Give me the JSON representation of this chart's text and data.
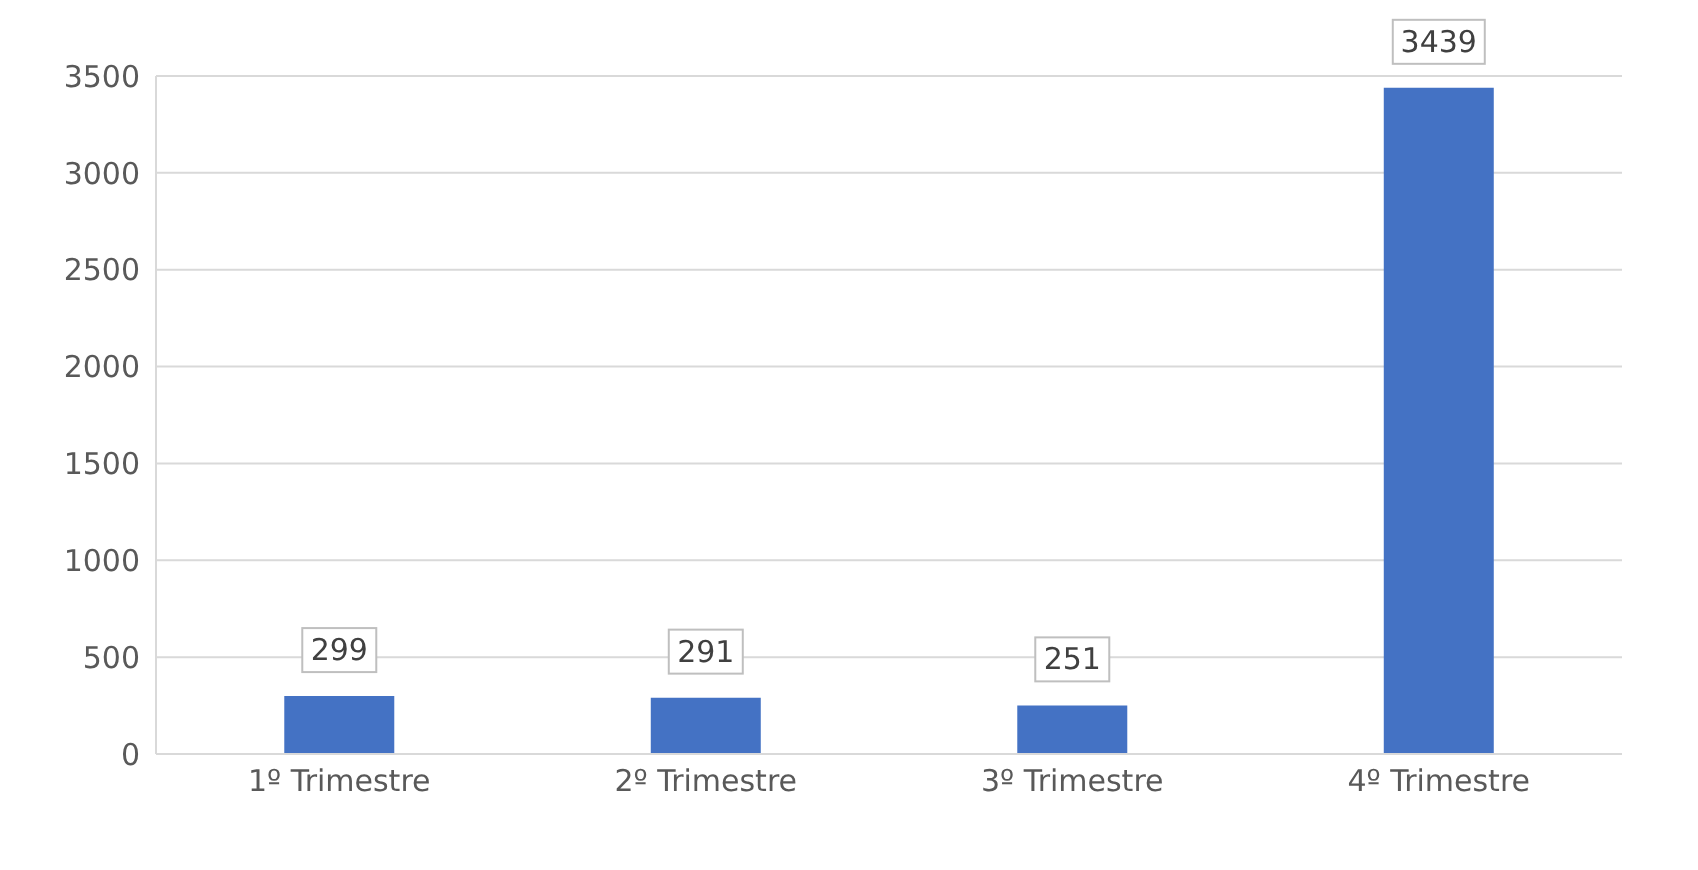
{
  "chart_data": {
    "type": "bar",
    "categories": [
      "1º Trimestre",
      "2º Trimestre",
      "3º Trimestre",
      "4º Trimestre"
    ],
    "values": [
      299,
      291,
      251,
      3439
    ],
    "color": "#4472c4",
    "ylim": [
      0,
      3500
    ],
    "yticks": [
      0,
      500,
      1000,
      1500,
      2000,
      2500,
      3000,
      3500
    ],
    "grid": "y",
    "data_labels": true
  }
}
